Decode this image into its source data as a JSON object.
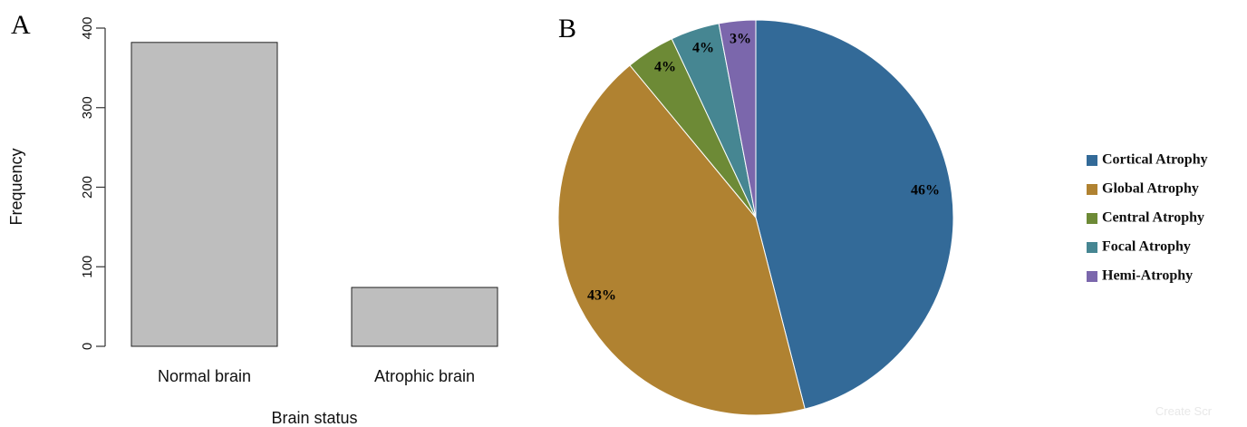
{
  "chart_data": [
    {
      "panel": "A",
      "type": "bar",
      "categories": [
        "Normal brain",
        "Atrophic brain"
      ],
      "values": [
        382,
        74
      ],
      "xlabel": "Brain status",
      "ylabel": "Frequency",
      "ylim": [
        0,
        400
      ],
      "yticks": [
        "0",
        "100",
        "200",
        "300",
        "400"
      ],
      "bar_color": "#bebebe",
      "grid": false
    },
    {
      "panel": "B",
      "type": "pie",
      "slices": [
        {
          "name": "Cortical Atrophy",
          "value": 46,
          "label": "46%",
          "color": "#336a98"
        },
        {
          "name": "Global Atrophy",
          "value": 43,
          "label": "43%",
          "color": "#b08231"
        },
        {
          "name": "Central Atrophy",
          "value": 4,
          "label": "4%",
          "color": "#6d8a36"
        },
        {
          "name": "Focal Atrophy",
          "value": 4,
          "label": "4%",
          "color": "#468692"
        },
        {
          "name": "Hemi-Atrophy",
          "value": 3,
          "label": "3%",
          "color": "#7b67ac"
        }
      ],
      "legend_position": "right"
    }
  ],
  "watermark": "Create Scr"
}
